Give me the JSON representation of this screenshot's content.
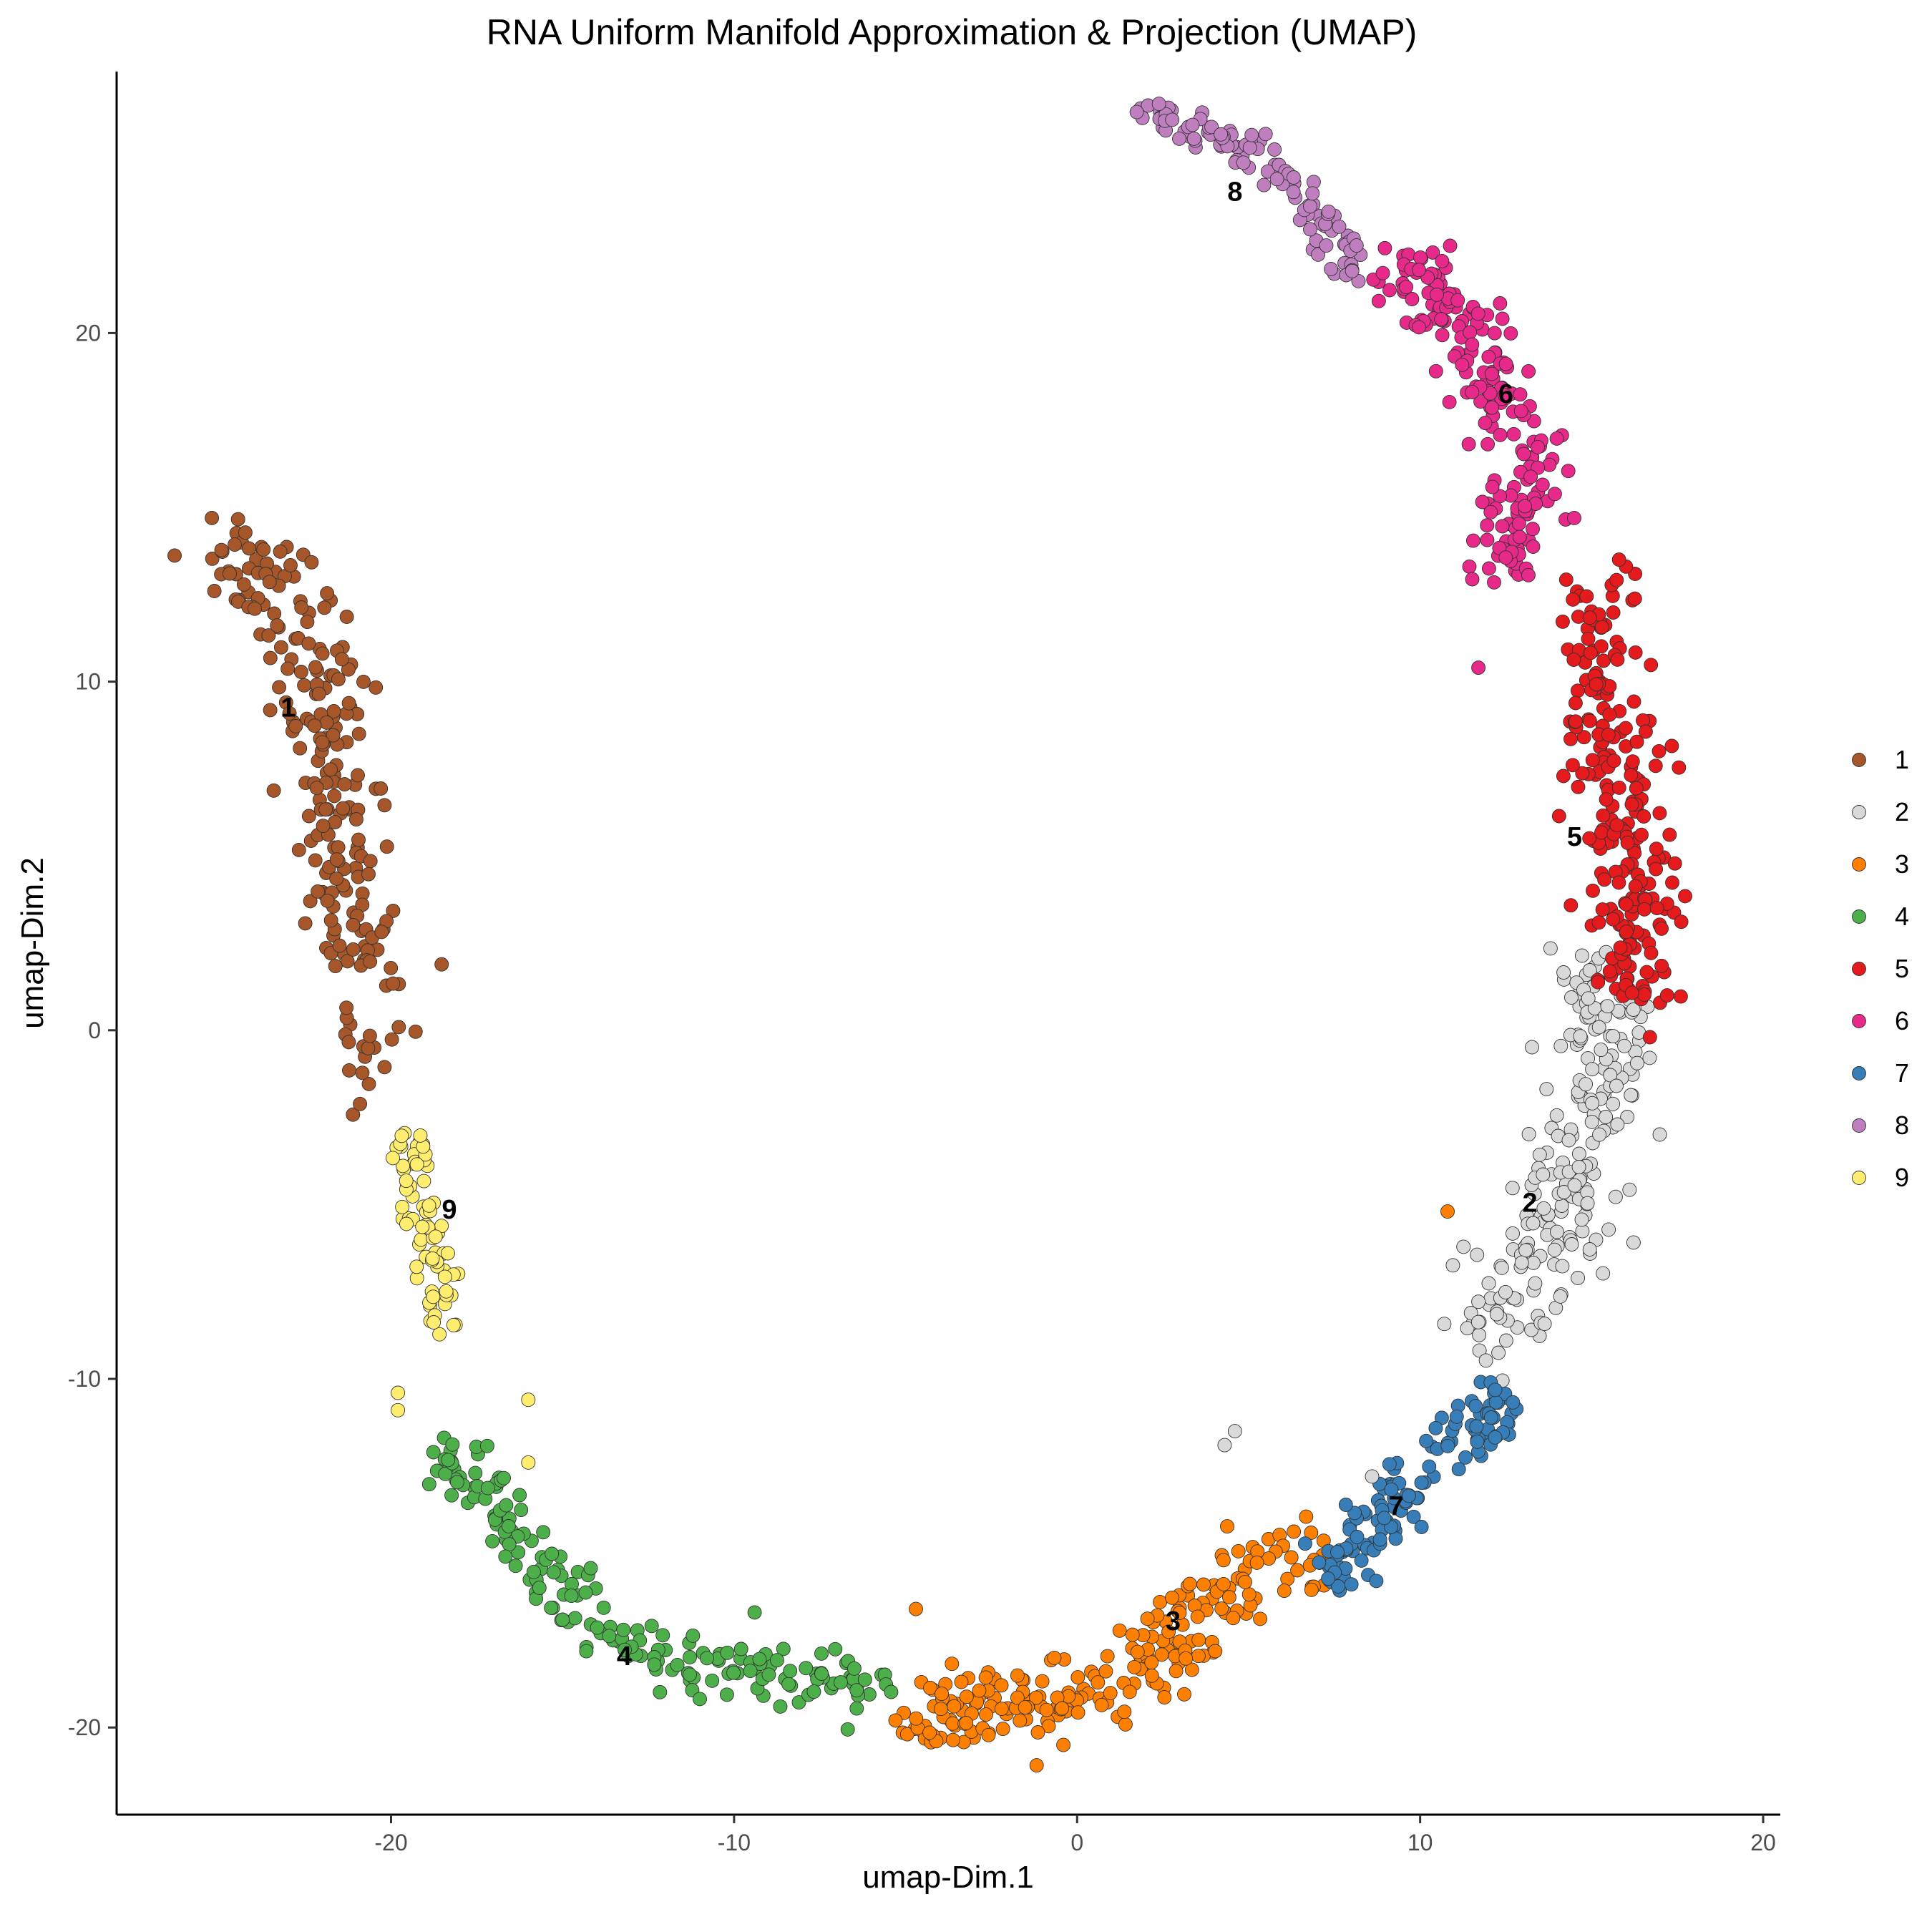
{
  "chart_data": {
    "type": "scatter",
    "title": "RNA Uniform Manifold Approximation & Projection (UMAP)",
    "xlabel": "umap-Dim.1",
    "ylabel": "umap-Dim.2",
    "xlim": [
      -28,
      20.5
    ],
    "ylim": [
      -22.5,
      27.5
    ],
    "x_ticks": [
      -20,
      -10,
      0,
      10,
      20
    ],
    "y_ticks": [
      -20,
      -10,
      0,
      10,
      20
    ],
    "x_tick_labels": [
      "-20",
      "-10",
      "0",
      "10",
      "20"
    ],
    "y_tick_labels": [
      "-20",
      "-10",
      "0",
      "10",
      "20"
    ],
    "grid": false,
    "legend_position": "right",
    "clusters": [
      {
        "name": "1",
        "color": "#A65628",
        "label_x": -23.0,
        "label_y": 9.2,
        "n": 230,
        "path": [
          [
            -25.5,
            14.0
          ],
          [
            -23.5,
            13.0
          ],
          [
            -22.0,
            10.0
          ],
          [
            -21.8,
            6.0
          ],
          [
            -21.0,
            2.0
          ],
          [
            -20.0,
            -1.5
          ]
        ],
        "spread": 1.2
      },
      {
        "name": "2",
        "color": "#D9D9D9",
        "label_x": 13.2,
        "label_y": -5.0,
        "n": 220,
        "path": [
          [
            15.5,
            2.0
          ],
          [
            15.3,
            -1.5
          ],
          [
            14.5,
            -4.5
          ],
          [
            13.0,
            -7.0
          ],
          [
            11.5,
            -9.0
          ]
        ],
        "spread": 1.3
      },
      {
        "name": "3",
        "color": "#FF7F00",
        "label_x": 2.8,
        "label_y": -17.0,
        "n": 230,
        "path": [
          [
            -5.0,
            -19.5
          ],
          [
            -1.0,
            -19.3
          ],
          [
            2.5,
            -17.8
          ],
          [
            5.0,
            -15.5
          ],
          [
            7.5,
            -15.0
          ]
        ],
        "spread": 0.9
      },
      {
        "name": "4",
        "color": "#4DAF4A",
        "label_x": -13.2,
        "label_y": -18.0,
        "n": 190,
        "path": [
          [
            -18.5,
            -12.0
          ],
          [
            -16.5,
            -14.5
          ],
          [
            -14.5,
            -16.5
          ],
          [
            -11.5,
            -18.3
          ],
          [
            -8.0,
            -18.6
          ],
          [
            -5.5,
            -18.9
          ]
        ],
        "spread": 0.75
      },
      {
        "name": "5",
        "color": "#E41A1C",
        "label_x": 14.5,
        "label_y": 5.5,
        "n": 230,
        "path": [
          [
            15.5,
            13.0
          ],
          [
            15.0,
            10.5
          ],
          [
            15.8,
            7.5
          ],
          [
            16.3,
            4.5
          ],
          [
            16.0,
            1.0
          ]
        ],
        "spread": 1.1
      },
      {
        "name": "6",
        "color": "#E7298A",
        "label_x": 12.5,
        "label_y": 18.2,
        "n": 200,
        "path": [
          [
            9.5,
            22.0
          ],
          [
            11.2,
            20.0
          ],
          [
            12.8,
            18.0
          ],
          [
            13.3,
            15.8
          ],
          [
            12.5,
            13.2
          ]
        ],
        "spread": 1.0
      },
      {
        "name": "7",
        "color": "#377EB8",
        "label_x": 9.3,
        "label_y": -13.7,
        "n": 130,
        "path": [
          [
            7.2,
            -15.8
          ],
          [
            9.0,
            -13.8
          ],
          [
            10.8,
            -12.0
          ],
          [
            12.8,
            -10.4
          ]
        ],
        "spread": 0.8
      },
      {
        "name": "8",
        "color": "#BF7FBF",
        "label_x": 4.6,
        "label_y": 24.0,
        "n": 110,
        "path": [
          [
            1.8,
            26.4
          ],
          [
            4.0,
            25.7
          ],
          [
            6.0,
            24.6
          ],
          [
            7.3,
            23.0
          ],
          [
            8.2,
            21.8
          ]
        ],
        "spread": 0.55
      },
      {
        "name": "9",
        "color": "#FFED6F",
        "label_x": -18.3,
        "label_y": -5.2,
        "n": 75,
        "path": [
          [
            -19.5,
            -3.0
          ],
          [
            -19.2,
            -5.2
          ],
          [
            -18.6,
            -7.5
          ],
          [
            -18.6,
            -8.8
          ]
        ],
        "spread": 0.55
      }
    ],
    "extra_points": [
      {
        "x": 4.6,
        "y": -11.5,
        "cluster": "2"
      },
      {
        "x": 4.3,
        "y": -11.9,
        "cluster": "2"
      },
      {
        "x": 8.6,
        "y": -12.8,
        "cluster": "2"
      },
      {
        "x": 10.8,
        "y": -5.2,
        "cluster": "3"
      },
      {
        "x": -19.8,
        "y": -10.4,
        "cluster": "9"
      },
      {
        "x": -19.8,
        "y": -10.9,
        "cluster": "9"
      },
      {
        "x": -16.0,
        "y": -10.6,
        "cluster": "9"
      },
      {
        "x": -16.0,
        "y": -12.4,
        "cluster": "9"
      },
      {
        "x": -9.4,
        "y": -16.7,
        "cluster": "4"
      },
      {
        "x": -4.7,
        "y": -16.6,
        "cluster": "3"
      },
      {
        "x": -0.4,
        "y": -20.5,
        "cluster": "3"
      },
      {
        "x": 11.7,
        "y": 10.4,
        "cluster": "6"
      },
      {
        "x": 16.0,
        "y": 13.3,
        "cluster": "5"
      },
      {
        "x": 15.8,
        "y": 13.5,
        "cluster": "5"
      },
      {
        "x": 17.2,
        "y": 1.0,
        "cluster": "5"
      },
      {
        "x": 16.7,
        "y": -0.2,
        "cluster": "5"
      }
    ]
  }
}
